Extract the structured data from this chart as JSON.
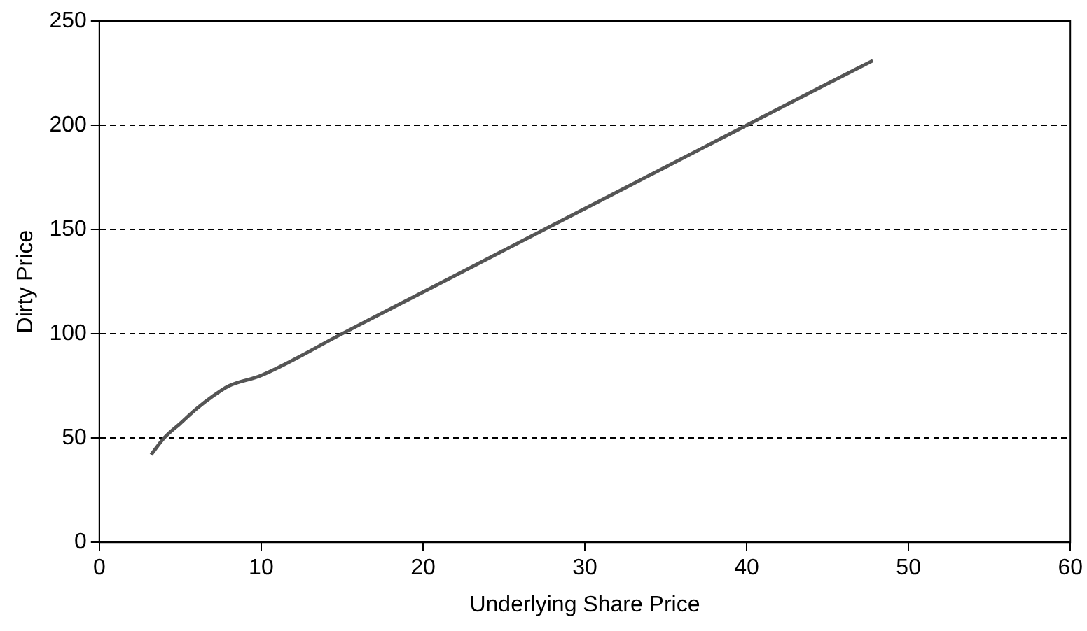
{
  "chart_data": {
    "type": "line",
    "xlabel": "Underlying Share Price",
    "ylabel": "Dirty Price",
    "x": [
      3.2,
      4,
      5,
      6,
      7,
      8,
      10,
      15,
      20,
      25,
      30,
      35,
      40,
      45,
      47.8
    ],
    "series": [
      {
        "color": "#555555",
        "values": [
          42,
          50,
          57,
          64,
          70,
          75,
          80,
          100,
          120,
          140,
          160,
          180,
          200,
          220,
          231
        ]
      }
    ],
    "xlim": [
      0,
      60
    ],
    "xticks": [
      0,
      10,
      20,
      30,
      40,
      50,
      60
    ],
    "ylim": [
      0,
      250
    ],
    "yticks": [
      0,
      50,
      100,
      150,
      200,
      250
    ],
    "grid": "y",
    "legend": false,
    "marker": "none",
    "line_style": "solid"
  }
}
